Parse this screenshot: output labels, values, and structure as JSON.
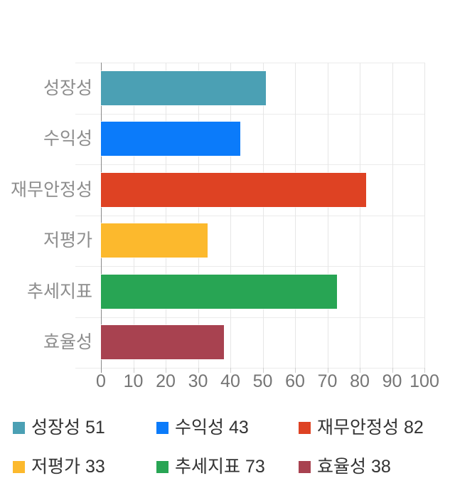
{
  "chart_data": {
    "type": "bar",
    "orientation": "horizontal",
    "title": "",
    "categories": [
      "성장성",
      "수익성",
      "재무안정성",
      "저평가",
      "추세지표",
      "효율성"
    ],
    "values": [
      51,
      43,
      82,
      33,
      73,
      38
    ],
    "colors": [
      "#4BA0B4",
      "#0B7BFA",
      "#DE4223",
      "#FCB92D",
      "#28A554",
      "#A84250"
    ],
    "xlim": [
      0,
      100
    ],
    "xticks": [
      0,
      10,
      20,
      30,
      40,
      50,
      60,
      70,
      80,
      90,
      100
    ],
    "grid": true,
    "legend_position": "bottom",
    "legend_items": [
      {
        "label": "성장성",
        "value": 51,
        "color": "#4BA0B4"
      },
      {
        "label": "수익성",
        "value": 43,
        "color": "#0B7BFA"
      },
      {
        "label": "재무안정성",
        "value": 82,
        "color": "#DE4223"
      },
      {
        "label": "저평가",
        "value": 33,
        "color": "#FCB92D"
      },
      {
        "label": "추세지표",
        "value": 73,
        "color": "#28A554"
      },
      {
        "label": "효율성",
        "value": 38,
        "color": "#A84250"
      }
    ]
  },
  "style_colors": {
    "background": "#ffffff",
    "axis_line": "#8a8a8a",
    "gridline": "#e6e6e6",
    "tick_label": "#757575",
    "category_label": "#8d8d8d",
    "legend_text": "#333333"
  }
}
